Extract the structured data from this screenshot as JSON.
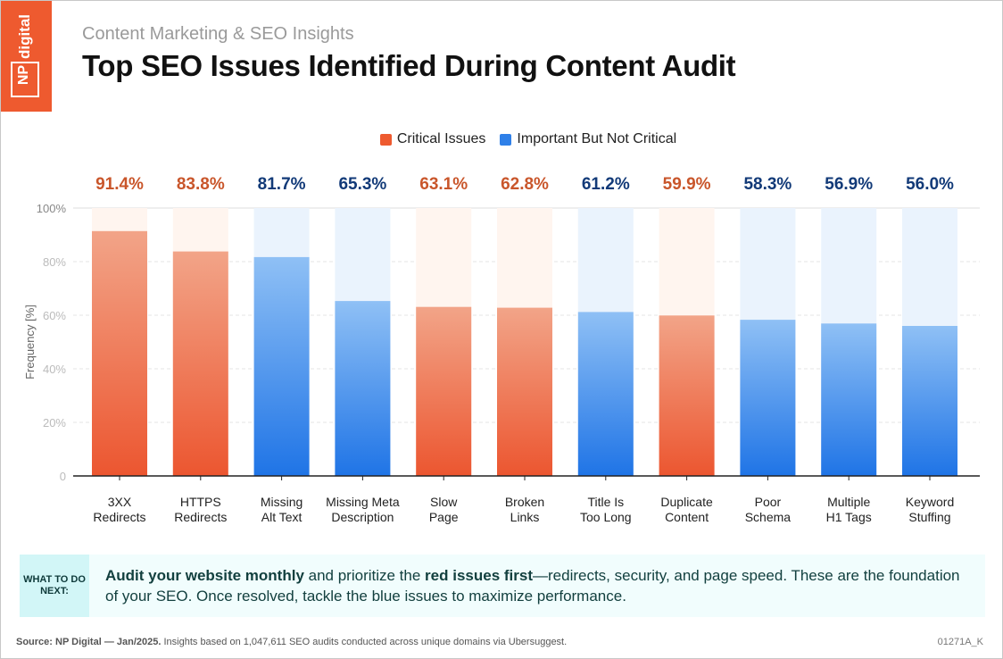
{
  "logo": {
    "text_np": "NP",
    "text_digital": "digital",
    "color": "#ee5a2f"
  },
  "header": {
    "subtitle": "Content Marketing & SEO Insights",
    "title": "Top SEO Issues Identified During Content Audit"
  },
  "chart_data": {
    "type": "bar",
    "title": "Top SEO Issues Identified During Content Audit",
    "ylabel": "Frequency [%]",
    "xlabel": "",
    "ylim": [
      0,
      100
    ],
    "yticks": [
      "0",
      "20%",
      "40%",
      "60%",
      "80%",
      "100%"
    ],
    "ytick_values": [
      0,
      20,
      40,
      60,
      80,
      100
    ],
    "grid": true,
    "legend": {
      "placement": "top-center",
      "entries": [
        {
          "name": "Critical Issues",
          "color": "#ee5a2f"
        },
        {
          "name": "Important But Not Critical",
          "color": "#2f80e8"
        }
      ]
    },
    "categories": [
      [
        "3XX",
        "Redirects"
      ],
      [
        "HTTPS",
        "Redirects"
      ],
      [
        "Missing",
        "Alt Text"
      ],
      [
        "Missing Meta",
        "Description"
      ],
      [
        "Slow",
        "Page"
      ],
      [
        "Broken",
        "Links"
      ],
      [
        "Title Is",
        "Too Long"
      ],
      [
        "Duplicate",
        "Content"
      ],
      [
        "Poor",
        "Schema"
      ],
      [
        "Multiple",
        "H1 Tags"
      ],
      [
        "Keyword",
        "Stuffing"
      ]
    ],
    "values": [
      91.4,
      83.8,
      81.7,
      65.3,
      63.1,
      62.8,
      61.2,
      59.9,
      58.3,
      56.9,
      56.0
    ],
    "data_labels": [
      "91.4%",
      "83.8%",
      "81.7%",
      "65.3%",
      "63.1%",
      "62.8%",
      "61.2%",
      "59.9%",
      "58.3%",
      "56.9%",
      "56.0%"
    ],
    "group": [
      "Critical Issues",
      "Critical Issues",
      "Important But Not Critical",
      "Important But Not Critical",
      "Critical Issues",
      "Critical Issues",
      "Important But Not Critical",
      "Critical Issues",
      "Important But Not Critical",
      "Important But Not Critical",
      "Important But Not Critical"
    ],
    "colors": {
      "critical": "#ee5a2f",
      "critical_label": "#c9562b",
      "important": "#2f80e8",
      "important_label": "#123a78"
    }
  },
  "callout": {
    "tag": "WHAT TO DO NEXT:",
    "bold1": "Audit your website monthly",
    "text1": " and prioritize the ",
    "bold2": "red issues first",
    "text2": "—redirects, security, and page speed. These are the foundation of your SEO. Once resolved, tackle the blue issues to maximize performance."
  },
  "footer": {
    "source_bold": "Source: NP Digital — Jan/2025.",
    "source_text": " Insights based on 1,047,611 SEO audits conducted across unique domains via Ubersuggest.",
    "code": "01271A_K"
  }
}
